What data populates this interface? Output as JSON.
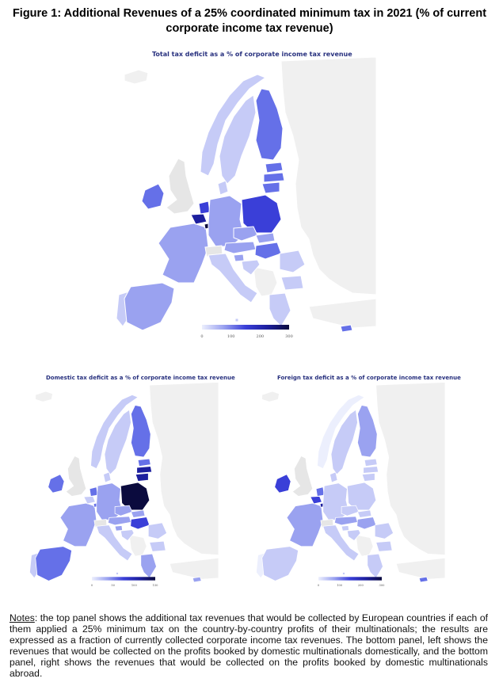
{
  "figure": {
    "title": "Figure 1: Additional Revenues of a 25% coordinated minimum tax in 2021 (% of current corporate income tax revenue)"
  },
  "colors": {
    "land_outside": "#f0f0f0",
    "border": "#ffffff",
    "scale_0": "#eceffd",
    "scale_1": "#c6cbf7",
    "scale_2": "#9aa2f0",
    "scale_3": "#6570e8",
    "scale_4": "#3a3fd8",
    "scale_5": "#1d1f9e",
    "scale_6": "#0b0b3e"
  },
  "maps": [
    {
      "id": "total",
      "title": "Total tax deficit as a % of corporate income tax revenue",
      "legend_ticks": [
        "0",
        "100",
        "200",
        "300"
      ],
      "legend_max": 300,
      "values": {
        "ireland": 3,
        "uk": -1,
        "portugal": 1,
        "spain": 2,
        "france": 2,
        "belgium": 5,
        "luxembourg": 6,
        "netherlands": 4,
        "germany": 2,
        "denmark": 1,
        "norway": 1,
        "sweden": 1,
        "finland": 3,
        "estonia": 3,
        "latvia": 3,
        "lithuania": 3,
        "poland": 4,
        "czechia": 2,
        "austria": 2,
        "switzerland": -1,
        "italy": 1,
        "slovenia": 2,
        "croatia": 1,
        "hungary": 3,
        "slovakia": 2,
        "romania": 1,
        "bulgaria": 1,
        "greece": 1,
        "cyprus": 3,
        "malta": 1
      }
    },
    {
      "id": "domestic",
      "title": "Domestic tax deficit as a % of corporate income tax revenue",
      "legend_ticks": [
        "0",
        "50",
        "100",
        "150"
      ],
      "legend_max": 150,
      "values": {
        "ireland": 3,
        "uk": -1,
        "portugal": 1,
        "spain": 3,
        "france": 2,
        "belgium": 1,
        "luxembourg": 3,
        "netherlands": 3,
        "germany": 2,
        "denmark": 1,
        "norway": 1,
        "sweden": 1,
        "finland": 3,
        "estonia": 3,
        "latvia": 5,
        "lithuania": 5,
        "poland": 6,
        "czechia": 2,
        "austria": 2,
        "switzerland": -1,
        "italy": 1,
        "slovenia": 2,
        "croatia": 1,
        "hungary": 4,
        "slovakia": 2,
        "romania": 1,
        "bulgaria": 1,
        "greece": 2,
        "cyprus": 2,
        "malta": 1
      }
    },
    {
      "id": "foreign",
      "title": "Foreign tax deficit as a % of corporate income tax revenue",
      "legend_ticks": [
        "0",
        "100",
        "200",
        "300"
      ],
      "legend_max": 300,
      "values": {
        "ireland": 4,
        "uk": -1,
        "portugal": 0,
        "spain": 1,
        "france": 2,
        "belgium": 4,
        "luxembourg": 5,
        "netherlands": 3,
        "germany": 1,
        "denmark": 1,
        "norway": 0,
        "sweden": 1,
        "finland": 2,
        "estonia": 1,
        "latvia": 1,
        "lithuania": 1,
        "poland": 1,
        "czechia": 1,
        "austria": 2,
        "switzerland": -1,
        "italy": 1,
        "slovenia": 1,
        "croatia": 1,
        "hungary": 2,
        "slovakia": 1,
        "romania": 1,
        "bulgaria": 1,
        "greece": 1,
        "cyprus": 3,
        "malta": 1
      }
    }
  ],
  "notes": {
    "label": "Notes",
    "text": ": the top panel shows the additional tax revenues that would be collected by European countries if each of them applied a 25% minimum tax on the country-by-country profits of their multinationals; the results are expressed as a fraction of currently collected corporate income tax revenues. The bottom panel, left shows the revenues that would be collected on the profits booked by domestic multinationals domestically, and the bottom panel, right shows the revenues that would be collected on the profits booked by domestic multinationals abroad."
  }
}
